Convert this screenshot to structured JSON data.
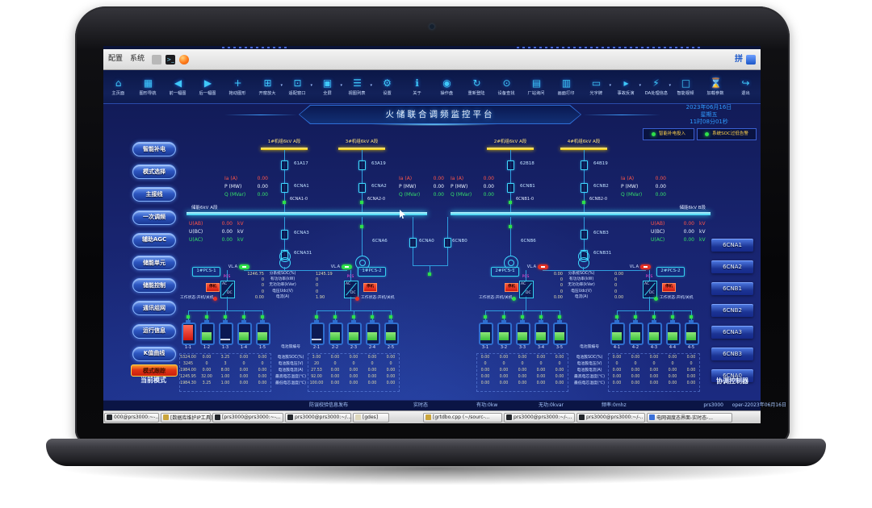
{
  "frame": {
    "menus": [
      "配置",
      "系统"
    ],
    "ime": "拼"
  },
  "header": {
    "title": "火储联合调频监控平台",
    "date": "2023年06月16日",
    "weekday": "星期五",
    "time": "11时08分01秒",
    "alarms": [
      {
        "label": "智能补电投入",
        "dot_color": "#2ee04a"
      },
      {
        "label": "系统SOC过低告警",
        "dot_color": "#2ee04a"
      }
    ]
  },
  "toolbar": {
    "items": [
      {
        "id": "home",
        "label": "主页面",
        "icon": "⌂",
        "dropdown": false
      },
      {
        "id": "graph-nav",
        "label": "图形导航",
        "icon": "▦",
        "dropdown": false
      },
      {
        "id": "prev-image",
        "label": "前一幅图",
        "icon": "◀",
        "dropdown": false
      },
      {
        "id": "next-image",
        "label": "后一幅图",
        "icon": "▶",
        "dropdown": false
      },
      {
        "id": "pan",
        "label": "拖动图形",
        "icon": "+",
        "dropdown": false
      },
      {
        "id": "zoom-window",
        "label": "开窗放大",
        "icon": "⊞",
        "dropdown": true
      },
      {
        "id": "fit-window",
        "label": "适配窗口",
        "icon": "⊡",
        "dropdown": true
      },
      {
        "id": "fullscreen",
        "label": "全屏",
        "icon": "▣",
        "dropdown": true
      },
      {
        "id": "view-list",
        "label": "视图列表",
        "icon": "☰",
        "dropdown": true
      },
      {
        "id": "settings",
        "label": "设置",
        "icon": "⚙",
        "dropdown": false
      },
      {
        "id": "about",
        "label": "关于",
        "icon": "ℹ",
        "dropdown": false
      },
      {
        "id": "operation-panel",
        "label": "操作盘",
        "icon": "◉",
        "dropdown": false
      },
      {
        "id": "relogin",
        "label": "重新登陆",
        "icon": "↻",
        "dropdown": false
      },
      {
        "id": "device-search",
        "label": "设备查找",
        "icon": "⊙",
        "dropdown": false
      },
      {
        "id": "station-query",
        "label": "厂站询问",
        "icon": "▤",
        "dropdown": false
      },
      {
        "id": "print",
        "label": "画面打印",
        "icon": "▥",
        "dropdown": false
      },
      {
        "id": "light-board",
        "label": "光字牌",
        "icon": "▭",
        "dropdown": true
      },
      {
        "id": "incident-replay",
        "label": "事故反演",
        "icon": "▸",
        "dropdown": true
      },
      {
        "id": "da-info",
        "label": "DA处理信息",
        "icon": "⚡",
        "dropdown": true
      },
      {
        "id": "smart-video",
        "label": "智能视频",
        "icon": "□",
        "dropdown": false
      },
      {
        "id": "load-params",
        "label": "加载参数",
        "icon": "⌛",
        "dropdown": false
      },
      {
        "id": "exit",
        "label": "退出",
        "icon": "↪",
        "dropdown": false
      }
    ]
  },
  "left_nav": {
    "items": [
      {
        "id": "smart-recharge",
        "label": "智能补电"
      },
      {
        "id": "mode-select",
        "label": "模式选择"
      },
      {
        "id": "main-wiring",
        "label": "主接线"
      },
      {
        "id": "primary-freq",
        "label": "一次调频"
      },
      {
        "id": "aux-agc",
        "label": "辅助AGC"
      },
      {
        "id": "storage-unit",
        "label": "储能单元"
      },
      {
        "id": "storage-control",
        "label": "储能控制"
      },
      {
        "id": "comm-network",
        "label": "通讯组网"
      },
      {
        "id": "runtime-info",
        "label": "运行信息"
      },
      {
        "id": "k-curve",
        "label": "K值曲线"
      }
    ],
    "mode_badge": "模式跟踪",
    "mode_label": "当前模式"
  },
  "right_nav": {
    "items": [
      "6CNA1",
      "6CNA2",
      "6CNB1",
      "6CNB2",
      "6CNA3",
      "6CNB3",
      "6CNA0"
    ],
    "footer": "协调控制器"
  },
  "schematic": {
    "meas_labels": {
      "ia": "Ia (A)",
      "p": "P (MW)",
      "q": "Q (MVar)"
    },
    "feeders": [
      {
        "bus_label": "1#机组6kV A段",
        "breaker_top": "61A17",
        "breaker_bottom": "6CNA1",
        "disconnect": "6CNA1-0",
        "ia": "0.00",
        "p": "0.00",
        "q": "0.00"
      },
      {
        "bus_label": "3#机组6kV A段",
        "breaker_top": "63A19",
        "breaker_bottom": "6CNA2",
        "disconnect": "6CNA2-0",
        "ia": "0.00",
        "p": "0.00",
        "q": "0.00"
      },
      {
        "bus_label": "2#机组6kV A段",
        "breaker_top": "62B18",
        "breaker_bottom": "6CNB1",
        "disconnect": "6CNB1-0",
        "ia": "0.00",
        "p": "0.00",
        "q": "0.00"
      },
      {
        "bus_label": "4#机组6kV A段",
        "breaker_top": "64B19",
        "breaker_bottom": "6CNB2",
        "disconnect": "6CNB2-0",
        "ia": "0.00",
        "p": "0.00",
        "q": "0.00"
      }
    ],
    "buses": [
      {
        "label": "储能6kV A段",
        "voltages": [
          {
            "name": "U(AB)",
            "value": "0.00",
            "unit": "kV",
            "color": "#ff5548"
          },
          {
            "name": "U(BC)",
            "value": "0.00",
            "unit": "kV",
            "color": "#e8f2ff"
          },
          {
            "name": "U(AC)",
            "value": "0.00",
            "unit": "kV",
            "color": "#35e06a"
          }
        ]
      },
      {
        "label": "储能6kV B段",
        "voltages": [
          {
            "name": "U(AB)",
            "value": "0.00",
            "unit": "kV",
            "color": "#ff5548"
          },
          {
            "name": "U(BC)",
            "value": "0.00",
            "unit": "kV",
            "color": "#e8f2ff"
          },
          {
            "name": "U(AC)",
            "value": "0.00",
            "unit": "kV",
            "color": "#35e06a"
          }
        ]
      }
    ],
    "bus_devices": {
      "a_chain": [
        "6CNA3",
        "6CNA31"
      ],
      "a_motor": "6CNA6",
      "tie": [
        "6CNA0",
        "6CNB0"
      ],
      "b_motor": "6CNB6",
      "b_chain": [
        "6CNB3",
        "6CNB31"
      ]
    },
    "pcs_label": "PCS",
    "pcs_ac": "AC",
    "pcs_dc": "DC",
    "pcs_groups": [
      {
        "toggle_label": "VL.A",
        "toggle_color": "#2ee04a",
        "status_label": "工作状态:开机/关机",
        "units": [
          {
            "button": "1#PCS-1",
            "stop_label": "停机",
            "status_color": "#e8302a"
          },
          {
            "button": "1#PCS-2",
            "stop_label": "停机",
            "status_color": "#e8302a"
          }
        ],
        "rows": [
          {
            "label": "分系统SOC(%)",
            "left": "1246.75",
            "right": "1245.19"
          },
          {
            "label": "有功功率(kW)",
            "left": "0",
            "right": "0"
          },
          {
            "label": "无功功率(kVar)",
            "left": "0",
            "right": "0"
          },
          {
            "label": "电压Udc(V)",
            "left": "0",
            "right": "0"
          },
          {
            "label": "电流(A)",
            "left": "0.00",
            "right": "1.90"
          }
        ]
      },
      {
        "toggle_label": "VL.A",
        "toggle_color": "#e23024",
        "status_label": "工作状态:开机/关机",
        "units": [
          {
            "button": "2#PCS-1",
            "stop_label": "停机",
            "status_color": "#2ee04a"
          },
          {
            "button": "2#PCS-2",
            "stop_label": "停机",
            "status_color": "#2ee04a"
          }
        ],
        "rows": [
          {
            "label": "分系统SOC(%)",
            "left": "0.00",
            "right": "0.00"
          },
          {
            "label": "有功功率(kW)",
            "left": "0",
            "right": "0"
          },
          {
            "label": "无功功率(kVar)",
            "left": "0",
            "right": "0"
          },
          {
            "label": "电压Udc(V)",
            "left": "0",
            "right": "0"
          },
          {
            "label": "电流(A)",
            "left": "0.00",
            "right": "0.00"
          }
        ]
      }
    ],
    "battery_row_labels": [
      "电池簇编号",
      "电池簇SOC(%)",
      "电池簇电压(V)",
      "电池簇电流(A)",
      "最高电芯温度(℃)",
      "最低电芯温度(℃)"
    ],
    "battery_groups": [
      {
        "ids": [
          "1-1",
          "1-2",
          "1-3",
          "1-4",
          "1-5"
        ],
        "fills": [
          "red",
          "green",
          "empty",
          "green",
          "green"
        ],
        "rows": [
          [
            "5324.00",
            "0.00",
            "3.25",
            "0.00",
            "0.00"
          ],
          [
            "3245",
            "0",
            "3",
            "0",
            "0"
          ],
          [
            "1984.00",
            "0.00",
            "8.00",
            "0.00",
            "0.00"
          ],
          [
            "1245.95",
            "32.00",
            "1.00",
            "0.00",
            "0.00"
          ],
          [
            "1984.30",
            "3.25",
            "1.00",
            "0.00",
            "0.00"
          ]
        ]
      },
      {
        "ids": [
          "2-1",
          "2-2",
          "2-3",
          "2-4",
          "2-5"
        ],
        "fills": [
          "empty",
          "green",
          "green",
          "green",
          "green"
        ],
        "rows": [
          [
            "3.00",
            "0.00",
            "0.00",
            "0.00",
            "0.00"
          ],
          [
            "20",
            "0",
            "0",
            "0",
            "0"
          ],
          [
            "27.53",
            "0.00",
            "0.00",
            "0.00",
            "0.00"
          ],
          [
            "92.00",
            "0.00",
            "0.00",
            "0.00",
            "0.00"
          ],
          [
            "100.00",
            "0.00",
            "0.00",
            "0.00",
            "0.00"
          ]
        ]
      },
      {
        "ids": [
          "3-1",
          "3-2",
          "3-3",
          "3-4",
          "3-5"
        ],
        "fills": [
          "green",
          "green",
          "green",
          "green",
          "green"
        ],
        "rows": [
          [
            "0.00",
            "0.00",
            "0.00",
            "0.00",
            "0.00"
          ],
          [
            "0",
            "0",
            "0",
            "0",
            "0"
          ],
          [
            "0.00",
            "0.00",
            "0.00",
            "0.00",
            "0.00"
          ],
          [
            "0.00",
            "0.00",
            "0.00",
            "0.00",
            "0.00"
          ],
          [
            "0.00",
            "0.00",
            "0.00",
            "0.00",
            "0.00"
          ]
        ]
      },
      {
        "ids": [
          "4-1",
          "4-2",
          "4-3",
          "4-4",
          "4-5"
        ],
        "fills": [
          "green",
          "green",
          "green",
          "green",
          "green"
        ],
        "rows": [
          [
            "0.00",
            "0.00",
            "0.00",
            "0.00",
            "0.00"
          ],
          [
            "0",
            "0",
            "0",
            "0",
            "0"
          ],
          [
            "0.00",
            "0.00",
            "0.00",
            "0.00",
            "0.00"
          ],
          [
            "0.00",
            "0.00",
            "0.00",
            "0.00",
            "0.00"
          ],
          [
            "0.00",
            "0.00",
            "0.00",
            "0.00",
            "0.00"
          ]
        ]
      }
    ]
  },
  "status_bar": {
    "items_left": [
      "防误校验信息发布",
      "实时态",
      "有功:0kw",
      "无功:0kvar",
      "频率:0mhz"
    ],
    "items_right": [
      "prs3000",
      "oper-2",
      "2023年06月16日"
    ]
  },
  "taskbar": {
    "items": [
      {
        "label": "000@prs3000:~-..",
        "icon": "terminal"
      },
      {
        "label": "[数据库维护IP工具]",
        "icon": "tool"
      },
      {
        "label": "[prs3000@prs3000:~-...",
        "icon": "terminal"
      },
      {
        "label": "prs3000@prs3000:~/...",
        "icon": "terminal"
      },
      {
        "label": "[gdes]",
        "icon": "file"
      },
      {
        "label": "[grtdbo.cpp (~/sourc-...",
        "icon": "code"
      },
      {
        "label": "prs3000@prs3000:~/-...",
        "icon": "terminal"
      },
      {
        "label": "prs3000@prs3000:~/-..",
        "icon": "terminal"
      },
      {
        "label": "电网调度态界面-实时态-...",
        "icon": "scada"
      }
    ]
  }
}
